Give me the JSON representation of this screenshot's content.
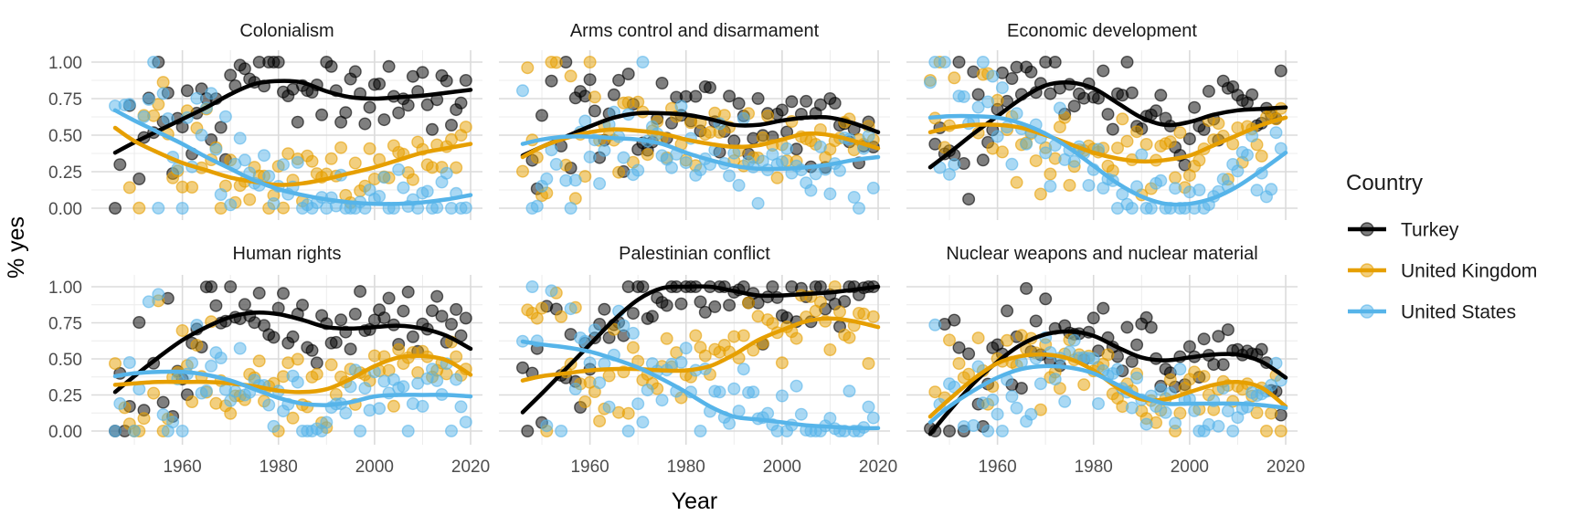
{
  "chart_data": {
    "type": "scatter",
    "description": "Faceted scatter plot of yearly UN vote agreement (% yes) with smoothed trend lines, by country and issue",
    "xlabel": "Year",
    "ylabel": "% yes",
    "x_range": [
      1946,
      2020
    ],
    "ylim": [
      0,
      1
    ],
    "grid": true,
    "legend_position": "right",
    "x_ticks": [
      {
        "value": 1960,
        "label": "1960"
      },
      {
        "value": 1980,
        "label": "1980"
      },
      {
        "value": 2000,
        "label": "2000"
      },
      {
        "value": 2020,
        "label": "2020"
      }
    ],
    "x_minor_gridlines": [
      1950,
      1970,
      1990,
      2010
    ],
    "y_ticks": [
      {
        "value": 1.0,
        "label": "1.00"
      },
      {
        "value": 0.75,
        "label": "0.75"
      },
      {
        "value": 0.5,
        "label": "0.50"
      },
      {
        "value": 0.25,
        "label": "0.25"
      },
      {
        "value": 0.0,
        "label": "0.00"
      }
    ],
    "y_minor_gridlines": [
      0.125,
      0.375,
      0.625,
      0.875
    ],
    "smooth_years": [
      1946,
      1950,
      1955,
      1960,
      1965,
      1970,
      1975,
      1980,
      1985,
      1990,
      1995,
      2000,
      2005,
      2010,
      2015,
      2020
    ],
    "facets": [
      {
        "title": "Colonialism",
        "series": [
          {
            "name": "Turkey",
            "smooth": [
              0.38,
              0.45,
              0.53,
              0.61,
              0.69,
              0.78,
              0.85,
              0.87,
              0.86,
              0.8,
              0.76,
              0.75,
              0.76,
              0.77,
              0.79,
              0.81
            ]
          },
          {
            "name": "United Kingdom",
            "smooth": [
              0.55,
              0.46,
              0.38,
              0.31,
              0.26,
              0.21,
              0.18,
              0.16,
              0.17,
              0.2,
              0.24,
              0.28,
              0.33,
              0.38,
              0.41,
              0.44
            ]
          },
          {
            "name": "United States",
            "smooth": [
              0.67,
              0.6,
              0.52,
              0.44,
              0.35,
              0.27,
              0.19,
              0.13,
              0.09,
              0.06,
              0.04,
              0.03,
              0.03,
              0.04,
              0.06,
              0.09
            ]
          }
        ]
      },
      {
        "title": "Arms control and disarmament",
        "series": [
          {
            "name": "Turkey",
            "smooth": [
              0.36,
              0.42,
              0.49,
              0.56,
              0.62,
              0.65,
              0.65,
              0.64,
              0.61,
              0.57,
              0.57,
              0.6,
              0.62,
              0.62,
              0.58,
              0.52
            ]
          },
          {
            "name": "United Kingdom",
            "smooth": [
              0.35,
              0.42,
              0.48,
              0.52,
              0.54,
              0.53,
              0.51,
              0.47,
              0.44,
              0.42,
              0.43,
              0.47,
              0.51,
              0.5,
              0.46,
              0.41
            ]
          },
          {
            "name": "United States",
            "smooth": [
              0.44,
              0.47,
              0.49,
              0.49,
              0.48,
              0.47,
              0.44,
              0.38,
              0.33,
              0.29,
              0.27,
              0.27,
              0.28,
              0.3,
              0.33,
              0.35
            ]
          }
        ]
      },
      {
        "title": "Economic development",
        "series": [
          {
            "name": "Turkey",
            "smooth": [
              0.28,
              0.38,
              0.51,
              0.63,
              0.75,
              0.84,
              0.86,
              0.82,
              0.72,
              0.62,
              0.57,
              0.59,
              0.64,
              0.67,
              0.68,
              0.69
            ]
          },
          {
            "name": "United Kingdom",
            "smooth": [
              0.52,
              0.55,
              0.57,
              0.57,
              0.55,
              0.5,
              0.44,
              0.38,
              0.34,
              0.32,
              0.33,
              0.36,
              0.43,
              0.5,
              0.57,
              0.62
            ]
          },
          {
            "name": "United States",
            "smooth": [
              0.62,
              0.63,
              0.63,
              0.62,
              0.58,
              0.51,
              0.41,
              0.29,
              0.17,
              0.08,
              0.03,
              0.03,
              0.07,
              0.15,
              0.26,
              0.38
            ]
          }
        ]
      },
      {
        "title": "Human rights",
        "series": [
          {
            "name": "Turkey",
            "smooth": [
              0.27,
              0.38,
              0.51,
              0.63,
              0.72,
              0.79,
              0.82,
              0.81,
              0.77,
              0.72,
              0.71,
              0.72,
              0.73,
              0.71,
              0.66,
              0.57
            ]
          },
          {
            "name": "United Kingdom",
            "smooth": [
              0.32,
              0.33,
              0.34,
              0.34,
              0.34,
              0.33,
              0.31,
              0.28,
              0.27,
              0.29,
              0.36,
              0.45,
              0.51,
              0.52,
              0.49,
              0.39
            ]
          },
          {
            "name": "United States",
            "smooth": [
              0.38,
              0.4,
              0.41,
              0.41,
              0.39,
              0.35,
              0.29,
              0.23,
              0.19,
              0.18,
              0.2,
              0.24,
              0.25,
              0.25,
              0.25,
              0.24
            ]
          }
        ]
      },
      {
        "title": "Palestinian conflict",
        "series": [
          {
            "name": "Turkey",
            "smooth": [
              0.13,
              0.26,
              0.43,
              0.6,
              0.77,
              0.91,
              0.99,
              1.0,
              1.0,
              0.97,
              0.94,
              0.94,
              0.95,
              0.96,
              0.98,
              1.0
            ]
          },
          {
            "name": "United Kingdom",
            "smooth": [
              0.35,
              0.38,
              0.4,
              0.42,
              0.43,
              0.43,
              0.42,
              0.42,
              0.45,
              0.53,
              0.63,
              0.7,
              0.76,
              0.78,
              0.76,
              0.72
            ]
          },
          {
            "name": "United States",
            "smooth": [
              0.62,
              0.6,
              0.58,
              0.55,
              0.5,
              0.44,
              0.36,
              0.27,
              0.17,
              0.1,
              0.08,
              0.06,
              0.04,
              0.03,
              0.02,
              0.02
            ]
          }
        ]
      },
      {
        "title": "Nuclear weapons and nuclear material",
        "series": [
          {
            "name": "Turkey",
            "smooth": [
              -0.02,
              0.14,
              0.33,
              0.48,
              0.6,
              0.67,
              0.69,
              0.66,
              0.58,
              0.51,
              0.49,
              0.51,
              0.53,
              0.53,
              0.48,
              0.37
            ]
          },
          {
            "name": "United Kingdom",
            "smooth": [
              0.1,
              0.22,
              0.36,
              0.47,
              0.52,
              0.53,
              0.5,
              0.42,
              0.3,
              0.22,
              0.22,
              0.27,
              0.32,
              0.34,
              0.3,
              0.17
            ]
          },
          {
            "name": "United States",
            "smooth": [
              0.06,
              0.17,
              0.28,
              0.37,
              0.43,
              0.45,
              0.44,
              0.4,
              0.32,
              0.24,
              0.19,
              0.19,
              0.19,
              0.19,
              0.18,
              0.16
            ]
          }
        ]
      }
    ],
    "scatter_note": "One semi-transparent point per year per country (yearly % yes); rendered as seeded jitter around the smoothed trend, clamped to [0,1], to approximate the original point cloud."
  },
  "legend": {
    "title": "Country",
    "entries": [
      {
        "label": "Turkey",
        "color": "#000000"
      },
      {
        "label": "United Kingdom",
        "color": "#E69F00"
      },
      {
        "label": "United States",
        "color": "#56B4E9"
      }
    ]
  },
  "axes": {
    "x_title": "Year",
    "y_title": "% yes"
  },
  "style": {
    "colors": {
      "Turkey": "#000000",
      "United Kingdom": "#E69F00",
      "United States": "#56B4E9"
    },
    "grid_major": "#DBDBDB",
    "grid_minor": "#ECECEC",
    "tick_text": "#4D4D4D",
    "background": "#FFFFFF",
    "point_opacity": 0.5,
    "line_width": 4.5
  }
}
